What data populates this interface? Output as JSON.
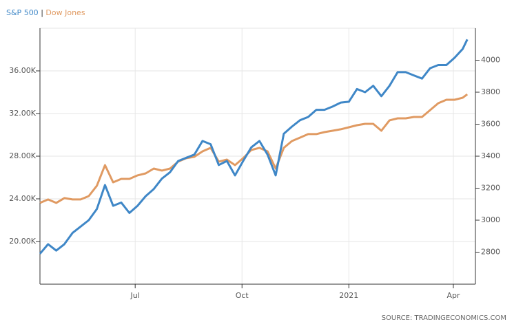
{
  "chart_data": {
    "type": "line",
    "legend_separator": "|",
    "source": "SOURCE: TRADINGECONOMICS.COM",
    "x": [
      0,
      7,
      14,
      21,
      28,
      35,
      42,
      49,
      56,
      63,
      70,
      77,
      84,
      91,
      98,
      105,
      112,
      119,
      126,
      133,
      140,
      147,
      154,
      161,
      168,
      175,
      182,
      189,
      196,
      203,
      210,
      217,
      224,
      231,
      238,
      245,
      252,
      259,
      266,
      273,
      280,
      287,
      294,
      301,
      308,
      315,
      322,
      329,
      336,
      343,
      350,
      357,
      364,
      368
    ],
    "xlim": [
      0,
      375
    ],
    "xticks": [
      {
        "value": 82,
        "label": "Jul"
      },
      {
        "value": 174,
        "label": "Oct"
      },
      {
        "value": 266,
        "label": "2021"
      },
      {
        "value": 356,
        "label": "Apr"
      }
    ],
    "ylim": [
      16000,
      40000
    ],
    "yticks": [
      {
        "value": 20000,
        "label": "20.00K"
      },
      {
        "value": 24000,
        "label": "24.00K"
      },
      {
        "value": 28000,
        "label": "28.00K"
      },
      {
        "value": 32000,
        "label": "32.00K"
      },
      {
        "value": 36000,
        "label": "36.00K"
      }
    ],
    "y2lim": [
      2600,
      4200
    ],
    "y2ticks": [
      2800,
      3000,
      3200,
      3400,
      3600,
      3800,
      4000
    ],
    "grid": true,
    "series": [
      {
        "name": "S&P 500",
        "color": "#3f87c7",
        "axis": "y2",
        "values": [
          2790,
          2850,
          2810,
          2850,
          2920,
          2960,
          3000,
          3070,
          3220,
          3090,
          3110,
          3045,
          3090,
          3150,
          3195,
          3260,
          3300,
          3370,
          3390,
          3410,
          3495,
          3475,
          3345,
          3370,
          3280,
          3370,
          3455,
          3495,
          3410,
          3280,
          3540,
          3585,
          3625,
          3645,
          3690,
          3690,
          3710,
          3735,
          3740,
          3820,
          3800,
          3840,
          3775,
          3840,
          3925,
          3925,
          3905,
          3885,
          3950,
          3970,
          3970,
          4015,
          4070,
          4130
        ]
      },
      {
        "name": "Dow Jones",
        "color": "#e09a62",
        "values": [
          23620,
          23940,
          23620,
          24070,
          23940,
          23940,
          24260,
          25230,
          27160,
          25550,
          25870,
          25870,
          26200,
          26390,
          26840,
          26650,
          26840,
          27490,
          27810,
          27940,
          28450,
          28780,
          27490,
          27680,
          27160,
          27810,
          28580,
          28780,
          28450,
          26840,
          28780,
          29420,
          29740,
          30070,
          30070,
          30260,
          30390,
          30520,
          30710,
          30900,
          31030,
          31030,
          30390,
          31360,
          31550,
          31550,
          31680,
          31680,
          32320,
          32970,
          33290,
          33290,
          33480,
          33800
        ]
      }
    ]
  }
}
